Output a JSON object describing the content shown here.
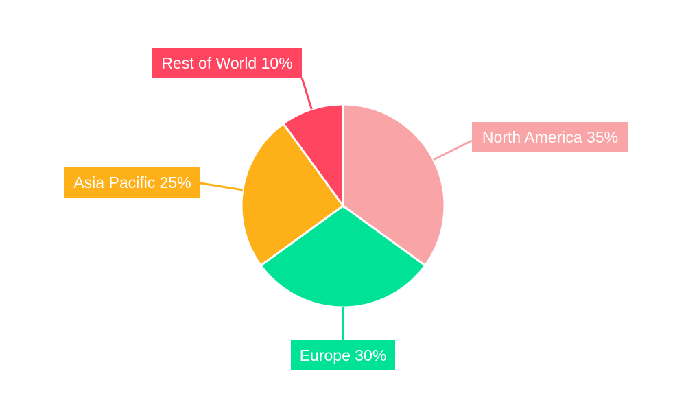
{
  "chart_data": {
    "type": "pie",
    "title": "",
    "legend": "none",
    "slices": [
      {
        "label": "North America",
        "value": 35,
        "display": "North America 35%",
        "color": "#F9A5A7"
      },
      {
        "label": "Europe",
        "value": 30,
        "display": "Europe 30%",
        "color": "#00E396"
      },
      {
        "label": "Asia Pacific",
        "value": 25,
        "display": "Asia Pacific 25%",
        "color": "#FEB019"
      },
      {
        "label": "Rest of World",
        "value": 10,
        "display": "Rest of World 10%",
        "color": "#FF4560"
      }
    ]
  }
}
